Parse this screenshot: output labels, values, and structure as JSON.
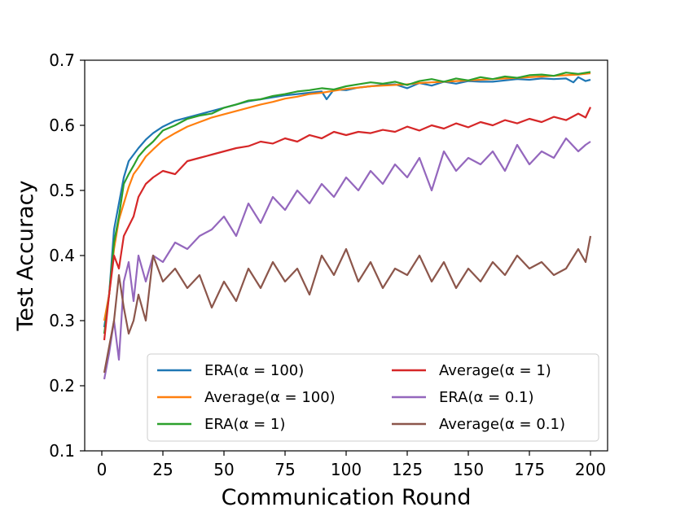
{
  "chart_data": {
    "type": "line",
    "title": "",
    "xlabel": "Communication Round",
    "ylabel": "Test Accuracy",
    "xlim": [
      -7,
      207
    ],
    "ylim": [
      0.1,
      0.7
    ],
    "xticks": [
      0,
      25,
      50,
      75,
      100,
      125,
      150,
      175,
      200
    ],
    "yticks": [
      0.1,
      0.2,
      0.3,
      0.4,
      0.5,
      0.6,
      0.7
    ],
    "legend_position": "lower-right",
    "series": [
      {
        "name": "ERA(α = 100)",
        "color": "#1f77b4",
        "x": [
          1,
          3,
          5,
          7,
          9,
          11,
          13,
          15,
          18,
          21,
          25,
          30,
          35,
          40,
          45,
          50,
          55,
          60,
          65,
          70,
          75,
          80,
          85,
          90,
          92,
          95,
          100,
          105,
          110,
          115,
          120,
          125,
          130,
          135,
          140,
          145,
          150,
          155,
          160,
          165,
          170,
          175,
          180,
          185,
          190,
          193,
          195,
          198,
          200
        ],
        "values": [
          0.29,
          0.34,
          0.44,
          0.48,
          0.52,
          0.545,
          0.555,
          0.565,
          0.578,
          0.588,
          0.598,
          0.607,
          0.612,
          0.617,
          0.622,
          0.627,
          0.632,
          0.637,
          0.64,
          0.643,
          0.646,
          0.648,
          0.65,
          0.652,
          0.64,
          0.655,
          0.654,
          0.658,
          0.66,
          0.662,
          0.663,
          0.657,
          0.665,
          0.661,
          0.667,
          0.664,
          0.668,
          0.667,
          0.667,
          0.669,
          0.671,
          0.67,
          0.672,
          0.671,
          0.672,
          0.666,
          0.674,
          0.668,
          0.67
        ]
      },
      {
        "name": "Average(α = 100)",
        "color": "#ff7f0e",
        "x": [
          1,
          3,
          5,
          7,
          9,
          11,
          13,
          15,
          18,
          21,
          25,
          30,
          35,
          40,
          45,
          50,
          55,
          60,
          65,
          70,
          75,
          80,
          85,
          90,
          95,
          100,
          105,
          110,
          115,
          120,
          125,
          130,
          135,
          140,
          145,
          150,
          155,
          160,
          165,
          170,
          175,
          180,
          185,
          190,
          195,
          200
        ],
        "values": [
          0.3,
          0.34,
          0.41,
          0.455,
          0.48,
          0.505,
          0.525,
          0.535,
          0.552,
          0.563,
          0.577,
          0.588,
          0.598,
          0.605,
          0.612,
          0.617,
          0.622,
          0.627,
          0.632,
          0.636,
          0.641,
          0.644,
          0.648,
          0.65,
          0.653,
          0.656,
          0.658,
          0.66,
          0.661,
          0.662,
          0.663,
          0.665,
          0.666,
          0.667,
          0.668,
          0.669,
          0.67,
          0.671,
          0.672,
          0.673,
          0.674,
          0.675,
          0.676,
          0.677,
          0.678,
          0.68
        ]
      },
      {
        "name": "ERA(α = 1)",
        "color": "#2ca02c",
        "x": [
          1,
          3,
          5,
          7,
          9,
          11,
          13,
          15,
          18,
          21,
          25,
          30,
          35,
          40,
          45,
          50,
          55,
          60,
          65,
          70,
          75,
          80,
          85,
          90,
          95,
          100,
          105,
          110,
          115,
          120,
          125,
          130,
          135,
          140,
          145,
          150,
          155,
          160,
          165,
          170,
          175,
          180,
          185,
          190,
          195,
          200
        ],
        "values": [
          0.28,
          0.34,
          0.42,
          0.46,
          0.51,
          0.525,
          0.538,
          0.552,
          0.565,
          0.575,
          0.592,
          0.6,
          0.61,
          0.615,
          0.618,
          0.627,
          0.632,
          0.638,
          0.64,
          0.645,
          0.648,
          0.652,
          0.654,
          0.657,
          0.655,
          0.66,
          0.663,
          0.666,
          0.664,
          0.667,
          0.662,
          0.668,
          0.671,
          0.667,
          0.672,
          0.669,
          0.674,
          0.671,
          0.675,
          0.673,
          0.677,
          0.678,
          0.676,
          0.681,
          0.679,
          0.682
        ]
      },
      {
        "name": "Average(α = 1)",
        "color": "#d62728",
        "x": [
          1,
          3,
          5,
          7,
          9,
          11,
          13,
          15,
          18,
          21,
          25,
          30,
          35,
          40,
          45,
          50,
          55,
          60,
          65,
          70,
          75,
          80,
          85,
          90,
          95,
          100,
          105,
          110,
          115,
          120,
          125,
          130,
          135,
          140,
          145,
          150,
          155,
          160,
          165,
          170,
          175,
          180,
          185,
          190,
          195,
          198,
          200
        ],
        "values": [
          0.27,
          0.34,
          0.4,
          0.38,
          0.43,
          0.445,
          0.46,
          0.49,
          0.51,
          0.52,
          0.53,
          0.525,
          0.545,
          0.55,
          0.555,
          0.56,
          0.565,
          0.568,
          0.575,
          0.572,
          0.58,
          0.575,
          0.585,
          0.58,
          0.59,
          0.585,
          0.59,
          0.588,
          0.593,
          0.59,
          0.598,
          0.592,
          0.6,
          0.595,
          0.603,
          0.597,
          0.605,
          0.6,
          0.608,
          0.603,
          0.61,
          0.605,
          0.613,
          0.608,
          0.618,
          0.612,
          0.628
        ]
      },
      {
        "name": "ERA(α = 0.1)",
        "color": "#9467bd",
        "x": [
          1,
          3,
          5,
          7,
          9,
          11,
          13,
          15,
          18,
          21,
          25,
          30,
          35,
          40,
          45,
          50,
          55,
          60,
          65,
          70,
          75,
          80,
          85,
          90,
          95,
          100,
          105,
          110,
          115,
          120,
          125,
          130,
          135,
          140,
          145,
          150,
          155,
          160,
          165,
          170,
          175,
          180,
          185,
          190,
          195,
          198,
          200
        ],
        "values": [
          0.21,
          0.25,
          0.3,
          0.24,
          0.36,
          0.39,
          0.33,
          0.4,
          0.36,
          0.4,
          0.39,
          0.42,
          0.41,
          0.43,
          0.44,
          0.46,
          0.43,
          0.48,
          0.45,
          0.49,
          0.47,
          0.5,
          0.48,
          0.51,
          0.49,
          0.52,
          0.5,
          0.53,
          0.51,
          0.54,
          0.52,
          0.55,
          0.5,
          0.56,
          0.53,
          0.55,
          0.54,
          0.56,
          0.53,
          0.57,
          0.54,
          0.56,
          0.55,
          0.58,
          0.56,
          0.57,
          0.575
        ]
      },
      {
        "name": "Average(α = 0.1)",
        "color": "#8c564b",
        "x": [
          1,
          3,
          5,
          7,
          9,
          11,
          13,
          15,
          18,
          21,
          25,
          30,
          35,
          40,
          45,
          50,
          55,
          60,
          65,
          70,
          75,
          80,
          85,
          90,
          95,
          100,
          105,
          110,
          115,
          120,
          125,
          130,
          135,
          140,
          145,
          150,
          155,
          160,
          165,
          170,
          175,
          180,
          185,
          190,
          195,
          198,
          200
        ],
        "values": [
          0.22,
          0.26,
          0.3,
          0.37,
          0.32,
          0.28,
          0.3,
          0.34,
          0.3,
          0.4,
          0.36,
          0.38,
          0.35,
          0.37,
          0.32,
          0.36,
          0.33,
          0.38,
          0.35,
          0.39,
          0.36,
          0.38,
          0.34,
          0.4,
          0.37,
          0.41,
          0.36,
          0.39,
          0.35,
          0.38,
          0.37,
          0.4,
          0.36,
          0.39,
          0.35,
          0.38,
          0.36,
          0.39,
          0.37,
          0.4,
          0.38,
          0.39,
          0.37,
          0.38,
          0.41,
          0.39,
          0.43
        ]
      }
    ]
  }
}
